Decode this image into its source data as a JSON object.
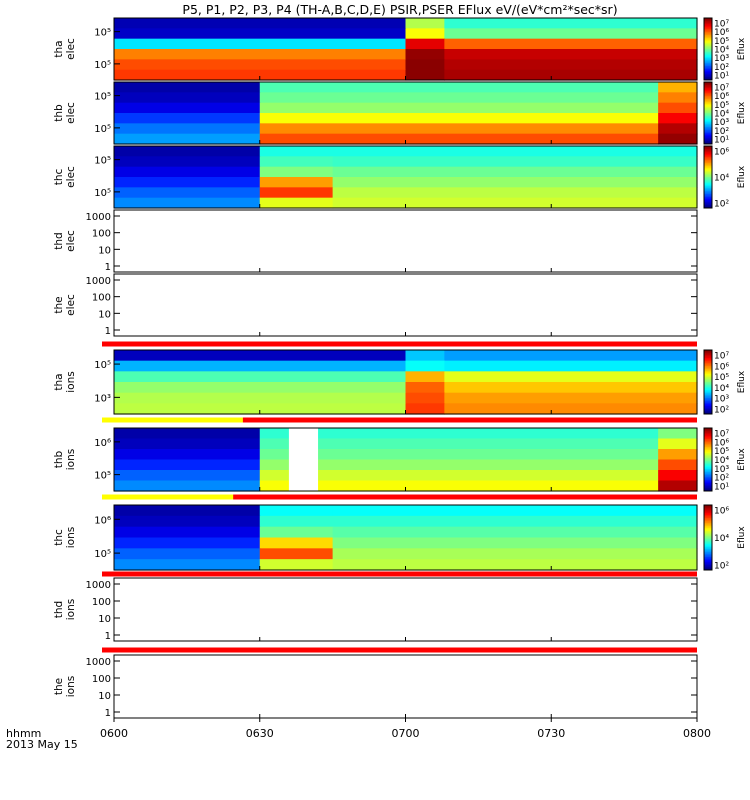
{
  "title": "P5, P1, P2, P3, P4 (TH-A,B,C,D,E) PSIR,PSER EFlux eV/(eV*cm²*sec*sr)",
  "time_axis": {
    "ticks": [
      "0600",
      "0630",
      "0700",
      "0730",
      "0800"
    ],
    "corner_label": "hhmm",
    "date_label": "2013 May 15"
  },
  "colorbar_label": "Eflux",
  "chart_data": [
    {
      "type": "heatmap",
      "probe": "tha",
      "species": "elec",
      "ylabel": [
        "tha",
        "elec"
      ],
      "ytick_labels": [
        "10⁵",
        "10⁵"
      ],
      "colorbar_ticks": [
        "10⁷",
        "10⁶",
        "10⁵",
        "10⁴",
        "10³",
        "10²",
        "10¹"
      ],
      "x_segments_hhmm": [
        "0600-0700",
        "0700-0708",
        "0708-0800"
      ],
      "level_rows_top_to_bottom": [
        [
          0.05,
          0.55,
          0.42
        ],
        [
          0.07,
          0.62,
          0.48
        ],
        [
          0.35,
          0.9,
          0.78
        ],
        [
          0.75,
          0.98,
          0.93
        ],
        [
          0.8,
          0.99,
          0.95
        ],
        [
          0.82,
          0.99,
          0.96
        ]
      ]
    },
    {
      "type": "heatmap",
      "probe": "thb",
      "species": "elec",
      "ylabel": [
        "thb",
        "elec"
      ],
      "ytick_labels": [
        "10⁵",
        "10⁵"
      ],
      "colorbar_ticks": [
        "10⁷",
        "10⁶",
        "10⁵",
        "10⁴",
        "10³",
        "10²",
        "10¹"
      ],
      "x_segments_hhmm": [
        "0600-0630",
        "0630-0752",
        "0752-0800"
      ],
      "level_rows_top_to_bottom": [
        [
          0.04,
          0.45,
          0.7
        ],
        [
          0.06,
          0.48,
          0.75
        ],
        [
          0.1,
          0.52,
          0.8
        ],
        [
          0.18,
          0.62,
          0.88
        ],
        [
          0.24,
          0.74,
          0.95
        ],
        [
          0.28,
          0.8,
          0.98
        ]
      ]
    },
    {
      "type": "heatmap",
      "probe": "thc",
      "species": "elec",
      "ylabel": [
        "thc",
        "elec"
      ],
      "ytick_labels": [
        "10⁵",
        "10⁵"
      ],
      "colorbar_ticks": [
        "10⁶",
        "10⁴",
        "10²"
      ],
      "x_segments_hhmm": [
        "0600-0630",
        "0630-0645",
        "0645-0800"
      ],
      "level_rows_top_to_bottom": [
        [
          0.04,
          0.4,
          0.4
        ],
        [
          0.06,
          0.44,
          0.43
        ],
        [
          0.1,
          0.5,
          0.48
        ],
        [
          0.16,
          0.72,
          0.52
        ],
        [
          0.22,
          0.82,
          0.56
        ],
        [
          0.26,
          0.6,
          0.58
        ]
      ]
    },
    {
      "type": "line",
      "probe": "thd",
      "species": "elec",
      "ylabel": [
        "thd",
        "elec"
      ],
      "yticks": [
        "1000",
        "100",
        "10",
        "1"
      ],
      "series": []
    },
    {
      "type": "line",
      "probe": "the",
      "species": "elec",
      "ylabel": [
        "the",
        "elec"
      ],
      "yticks": [
        "1000",
        "100",
        "10",
        "1"
      ],
      "series": []
    },
    {
      "type": "heatmap",
      "probe": "tha",
      "species": "ions",
      "ylabel": [
        "tha",
        "ions"
      ],
      "ytick_labels": [
        "10⁵",
        "10³"
      ],
      "colorbar_ticks": [
        "10⁷",
        "10⁶",
        "10⁵",
        "10⁴",
        "10³",
        "10²"
      ],
      "x_segments_hhmm": [
        "0600-0700",
        "0700-0708",
        "0708-0800"
      ],
      "level_rows_top_to_bottom": [
        [
          0.06,
          0.32,
          0.28
        ],
        [
          0.3,
          0.38,
          0.36
        ],
        [
          0.45,
          0.7,
          0.6
        ],
        [
          0.52,
          0.78,
          0.68
        ],
        [
          0.55,
          0.8,
          0.72
        ],
        [
          0.56,
          0.82,
          0.74
        ]
      ]
    },
    {
      "type": "heatmap",
      "probe": "thb",
      "species": "ions",
      "ylabel": [
        "thb",
        "ions"
      ],
      "ytick_labels": [
        "10⁶",
        "10⁵"
      ],
      "colorbar_ticks": [
        "10⁷",
        "10⁶",
        "10⁵",
        "10⁴",
        "10³",
        "10²",
        "10¹"
      ],
      "x_segments_hhmm": [
        "0600-0630",
        "0630-0752",
        "0752-0800"
      ],
      "level_rows_top_to_bottom": [
        [
          0.04,
          0.42,
          0.5
        ],
        [
          0.06,
          0.45,
          0.6
        ],
        [
          0.1,
          0.48,
          0.72
        ],
        [
          0.16,
          0.52,
          0.8
        ],
        [
          0.22,
          0.58,
          0.88
        ],
        [
          0.26,
          0.62,
          0.95
        ]
      ]
    },
    {
      "type": "heatmap",
      "probe": "thc",
      "species": "ions",
      "ylabel": [
        "thc",
        "ions"
      ],
      "ytick_labels": [
        "10⁶",
        "10⁵"
      ],
      "colorbar_ticks": [
        "10⁶",
        "10⁴",
        "10²"
      ],
      "x_segments_hhmm": [
        "0600-0630",
        "0630-0645",
        "0645-0800"
      ],
      "level_rows_top_to_bottom": [
        [
          0.04,
          0.38,
          0.38
        ],
        [
          0.06,
          0.42,
          0.42
        ],
        [
          0.1,
          0.48,
          0.46
        ],
        [
          0.16,
          0.66,
          0.5
        ],
        [
          0.22,
          0.8,
          0.54
        ],
        [
          0.26,
          0.58,
          0.56
        ]
      ]
    },
    {
      "type": "line",
      "probe": "thd",
      "species": "ions",
      "ylabel": [
        "thd",
        "ions"
      ],
      "yticks": [
        "1000",
        "100",
        "10",
        "1"
      ],
      "series": []
    },
    {
      "type": "line",
      "probe": "the",
      "species": "ions",
      "ylabel": [
        "the",
        "ions"
      ],
      "yticks": [
        "1000",
        "100",
        "10",
        "1"
      ],
      "series": []
    }
  ],
  "mode_bars": [
    {
      "after_panel": 4,
      "segments": [
        {
          "from": "0600",
          "to": "0800",
          "color": "#ff0000"
        }
      ]
    },
    {
      "after_panel": 5,
      "segments": [
        {
          "from": "0600",
          "to": "0629",
          "color": "#ffff00"
        },
        {
          "from": "0629",
          "to": "0800",
          "color": "#ff0000"
        }
      ]
    },
    {
      "after_panel": 6,
      "segments": [
        {
          "from": "0600",
          "to": "0627",
          "color": "#ffff00"
        },
        {
          "from": "0627",
          "to": "0800",
          "color": "#ff0000"
        }
      ]
    },
    {
      "after_panel": 7,
      "segments": [
        {
          "from": "0600",
          "to": "0800",
          "color": "#ff0000"
        }
      ]
    },
    {
      "after_panel": 8,
      "segments": [
        {
          "from": "0600",
          "to": "0800",
          "color": "#ff0000"
        }
      ]
    }
  ],
  "data_gap": {
    "panel": 6,
    "from": "0636",
    "to": "0642"
  }
}
